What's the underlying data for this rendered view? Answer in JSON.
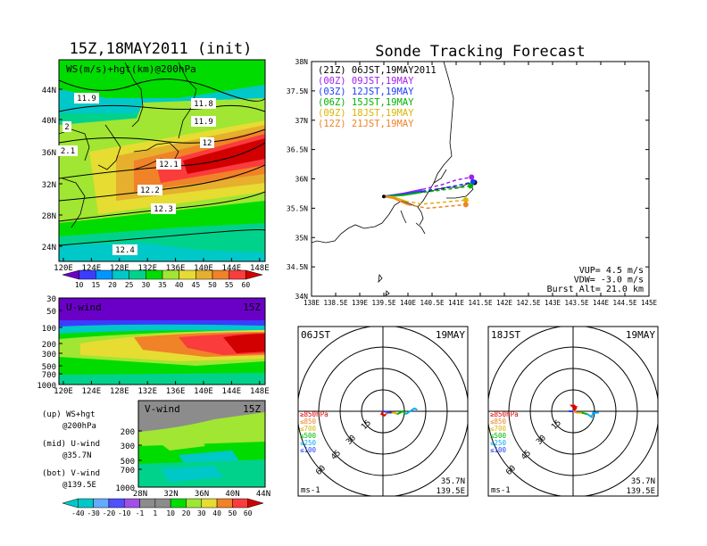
{
  "left": {
    "title": "15Z,18MAY2011 (init)",
    "panel1_label": "WS(m/s)+hgt(km)@200hPa",
    "panel1_yticks": [
      "44N",
      "40N",
      "36N",
      "32N",
      "28N",
      "24N"
    ],
    "panel1_xticks": [
      "120E",
      "124E",
      "128E",
      "132E",
      "136E",
      "140E",
      "144E",
      "148E"
    ],
    "ws_colorbar_ticks": [
      "10",
      "15",
      "20",
      "25",
      "30",
      "35",
      "40",
      "45",
      "50",
      "55",
      "60"
    ],
    "ws_colors": [
      "#6a00c8",
      "#3c3cff",
      "#0096ff",
      "#00c8c8",
      "#00d28c",
      "#00dc00",
      "#a0e632",
      "#e6dc32",
      "#e6af2d",
      "#f08228",
      "#fa3c3c",
      "#d20000"
    ],
    "hgt_labels": [
      "11.9",
      "11.8",
      "11.9",
      "12",
      "12.1",
      "12.2",
      "12.3",
      "12.4",
      "2",
      "2.1"
    ],
    "panel2_label": "U-wind",
    "panel2_time": "15Z",
    "panel2_yticks": [
      "30",
      "50",
      "100",
      "200",
      "300",
      "500",
      "700",
      "1000"
    ],
    "panel2_xticks": [
      "120E",
      "124E",
      "128E",
      "132E",
      "136E",
      "140E",
      "144E",
      "148E"
    ],
    "panel3_label": "V-wind",
    "panel3_time": "15Z",
    "panel3_yticks": [
      "200",
      "300",
      "500",
      "700",
      "1000"
    ],
    "panel3_xticks": [
      "28N",
      "32N",
      "36N",
      "40N",
      "44N"
    ],
    "notes": [
      "(up) WS+hgt",
      "@200hPa",
      "(mid) U-wind",
      "@35.7N",
      "(bot) V-wind",
      "@139.5E"
    ],
    "wind_colorbar_ticks": [
      "-40",
      "-30",
      "-20",
      "-10",
      "-1",
      "1",
      "10",
      "20",
      "30",
      "40",
      "50",
      "60"
    ],
    "wind_colors": [
      "#00c8c8",
      "#64aaff",
      "#5050ff",
      "#a050e6",
      "#8c8c8c",
      "#8c8c8c",
      "#00dc00",
      "#a0e632",
      "#e6dc32",
      "#f08228",
      "#fa3c3c",
      "#d20000"
    ]
  },
  "right": {
    "title": "Sonde Tracking Forecast",
    "yticks": [
      "38N",
      "37.5N",
      "37N",
      "36.5N",
      "36N",
      "35.5N",
      "35N",
      "34.5N",
      "34N"
    ],
    "xticks": [
      "138E",
      "138.5E",
      "139E",
      "139.5E",
      "140E",
      "140.5E",
      "141E",
      "141.5E",
      "142E",
      "142.5E",
      "143E",
      "143.5E",
      "144E",
      "144.5E",
      "145E"
    ],
    "legend": [
      {
        "text": "(21Z) 06JST,19MAY2011",
        "color": "#000000"
      },
      {
        "text": "(00Z) 09JST,19MAY",
        "color": "#a020f0"
      },
      {
        "text": "(03Z) 12JST,19MAY",
        "color": "#1e3cff"
      },
      {
        "text": "(06Z) 15JST,19MAY",
        "color": "#00b400"
      },
      {
        "text": "(09Z) 18JST,19MAY",
        "color": "#dcb400"
      },
      {
        "text": "(12Z) 21JST,19MAY",
        "color": "#f08228"
      }
    ],
    "params": [
      "VUP= 4.5 m/s",
      "VDW= -3.0 m/s",
      "Burst Alt= 21.0 km"
    ],
    "hodo_left": {
      "time": "06JST",
      "date": "19MAY",
      "loc1": "35.7N",
      "loc2": "139.5E",
      "unit": "ms-1"
    },
    "hodo_right": {
      "time": "18JST",
      "date": "19MAY",
      "loc1": "35.7N",
      "loc2": "139.5E",
      "unit": "ms-1"
    },
    "ring_labels": [
      "15",
      "30",
      "45",
      "60"
    ],
    "level_legend": [
      {
        "text": "≥850hPa",
        "color": "#dc0000"
      },
      {
        "text": "≤850",
        "color": "#f08228"
      },
      {
        "text": "≤700",
        "color": "#dcb400"
      },
      {
        "text": "≤500",
        "color": "#00b400"
      },
      {
        "text": "≤250",
        "color": "#00aaff"
      },
      {
        "text": "≤100",
        "color": "#1e3cff"
      }
    ]
  },
  "chart_data": [
    {
      "type": "line",
      "title": "Sonde Tracking Forecast",
      "xlabel": "",
      "ylabel": "",
      "xlim": [
        138,
        145
      ],
      "ylim": [
        34,
        38
      ],
      "launch": [
        139.5,
        35.7
      ],
      "series": [
        {
          "name": "(21Z) 06JST,19MAY2011",
          "x": [
            139.5,
            139.9,
            140.3,
            140.7,
            141.1,
            141.38
          ],
          "y": [
            35.7,
            35.74,
            35.78,
            35.83,
            35.9,
            35.94
          ]
        },
        {
          "name": "(00Z) 09JST,19MAY",
          "x": [
            139.5,
            139.9,
            140.3,
            140.7,
            141.0,
            141.32
          ],
          "y": [
            35.7,
            35.75,
            35.82,
            35.9,
            35.98,
            36.03
          ]
        },
        {
          "name": "(03Z) 12JST,19MAY",
          "x": [
            139.5,
            139.9,
            140.3,
            140.7,
            141.1,
            141.35
          ],
          "y": [
            35.7,
            35.74,
            35.79,
            35.84,
            35.9,
            35.95
          ]
        },
        {
          "name": "(06Z) 15JST,19MAY",
          "x": [
            139.5,
            139.9,
            140.2,
            140.6,
            141.0,
            141.3
          ],
          "y": [
            35.7,
            35.72,
            35.76,
            35.8,
            35.84,
            35.88
          ]
        },
        {
          "name": "(09Z) 18JST,19MAY",
          "x": [
            139.5,
            139.7,
            139.95,
            140.3,
            140.7,
            141.2
          ],
          "y": [
            35.7,
            35.69,
            35.62,
            35.57,
            35.6,
            35.64
          ]
        },
        {
          "name": "(12Z) 21JST,19MAY",
          "x": [
            139.5,
            139.7,
            140.0,
            140.4,
            140.8,
            141.2
          ],
          "y": [
            35.7,
            35.67,
            35.56,
            35.5,
            35.53,
            35.56
          ]
        }
      ]
    }
  ]
}
